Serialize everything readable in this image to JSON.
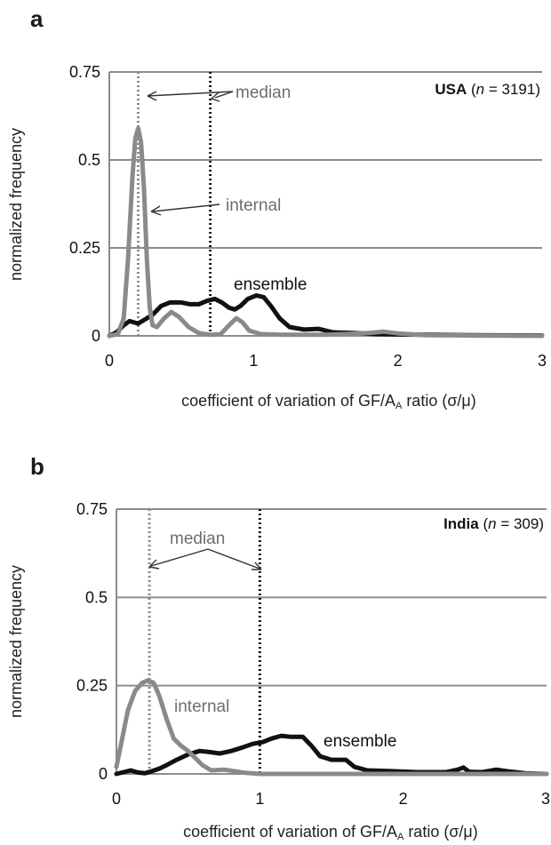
{
  "chart_data": [
    {
      "panel": "a",
      "type": "line",
      "region": "USA",
      "n": "3191",
      "region_prefix": " (",
      "n_label": "n",
      "n_suffix": " = 3191)",
      "xlabel": "coefficient of variation of GF/A",
      "xlabel_sub": "A",
      "xlabel_tail": " ratio (σ/μ)",
      "ylabel": "normalized frequency",
      "xlim": [
        0,
        3
      ],
      "ylim": [
        0,
        0.75
      ],
      "x_ticks": [
        0,
        1,
        2,
        3
      ],
      "y_ticks": [
        0,
        0.25,
        0.5,
        0.75
      ],
      "y_tick_labels": [
        "0",
        "0.25",
        "0.5",
        "0.75"
      ],
      "grid": true,
      "medians": {
        "internal": 0.2,
        "ensemble": 0.7
      },
      "annotations": {
        "median": "median",
        "internal": "internal",
        "ensemble": "ensemble"
      },
      "series": [
        {
          "name": "internal",
          "color": "#8a8a8a",
          "points": [
            [
              0,
              0
            ],
            [
              0.06,
              0.005
            ],
            [
              0.1,
              0.05
            ],
            [
              0.13,
              0.22
            ],
            [
              0.16,
              0.45
            ],
            [
              0.18,
              0.56
            ],
            [
              0.2,
              0.59
            ],
            [
              0.22,
              0.55
            ],
            [
              0.24,
              0.42
            ],
            [
              0.26,
              0.22
            ],
            [
              0.28,
              0.08
            ],
            [
              0.3,
              0.03
            ],
            [
              0.33,
              0.025
            ],
            [
              0.38,
              0.05
            ],
            [
              0.43,
              0.068
            ],
            [
              0.48,
              0.055
            ],
            [
              0.55,
              0.025
            ],
            [
              0.62,
              0.008
            ],
            [
              0.7,
              0.003
            ],
            [
              0.77,
              0.004
            ],
            [
              0.83,
              0.03
            ],
            [
              0.88,
              0.05
            ],
            [
              0.92,
              0.04
            ],
            [
              0.97,
              0.015
            ],
            [
              1.05,
              0.005
            ],
            [
              1.2,
              0.003
            ],
            [
              1.5,
              0.003
            ],
            [
              1.8,
              0.008
            ],
            [
              1.9,
              0.012
            ],
            [
              2.0,
              0.007
            ],
            [
              2.2,
              0.002
            ],
            [
              2.5,
              0.001
            ],
            [
              3.0,
              0.0
            ]
          ]
        },
        {
          "name": "ensemble",
          "color": "#111111",
          "points": [
            [
              0,
              0
            ],
            [
              0.05,
              0.01
            ],
            [
              0.1,
              0.03
            ],
            [
              0.14,
              0.042
            ],
            [
              0.2,
              0.035
            ],
            [
              0.26,
              0.05
            ],
            [
              0.3,
              0.06
            ],
            [
              0.36,
              0.085
            ],
            [
              0.42,
              0.095
            ],
            [
              0.5,
              0.095
            ],
            [
              0.56,
              0.09
            ],
            [
              0.62,
              0.09
            ],
            [
              0.68,
              0.1
            ],
            [
              0.73,
              0.105
            ],
            [
              0.78,
              0.095
            ],
            [
              0.83,
              0.08
            ],
            [
              0.87,
              0.075
            ],
            [
              0.91,
              0.085
            ],
            [
              0.96,
              0.105
            ],
            [
              1.02,
              0.115
            ],
            [
              1.07,
              0.11
            ],
            [
              1.12,
              0.085
            ],
            [
              1.18,
              0.05
            ],
            [
              1.25,
              0.025
            ],
            [
              1.35,
              0.018
            ],
            [
              1.45,
              0.02
            ],
            [
              1.55,
              0.01
            ],
            [
              1.7,
              0.008
            ],
            [
              1.85,
              0.005
            ],
            [
              2.0,
              0.004
            ],
            [
              2.2,
              0.003
            ],
            [
              2.5,
              0.002
            ],
            [
              3.0,
              0.001
            ]
          ]
        }
      ]
    },
    {
      "panel": "b",
      "type": "line",
      "region": "India",
      "n": "309",
      "region_prefix": " (",
      "n_label": "n",
      "n_suffix": " = 309)",
      "xlabel": "coefficient of variation of GF/A",
      "xlabel_sub": "A",
      "xlabel_tail": " ratio (σ/μ)",
      "ylabel": "normalized frequency",
      "xlim": [
        0,
        3
      ],
      "ylim": [
        0,
        0.75
      ],
      "x_ticks": [
        0,
        1,
        2,
        3
      ],
      "y_ticks": [
        0,
        0.25,
        0.5,
        0.75
      ],
      "y_tick_labels": [
        "0",
        "0.25",
        "0.5",
        "0.75"
      ],
      "grid": true,
      "medians": {
        "internal": 0.23,
        "ensemble": 1.0
      },
      "annotations": {
        "median": "median",
        "internal": "internal",
        "ensemble": "ensemble"
      },
      "series": [
        {
          "name": "internal",
          "color": "#8a8a8a",
          "points": [
            [
              0,
              0.02
            ],
            [
              0.04,
              0.1
            ],
            [
              0.08,
              0.18
            ],
            [
              0.13,
              0.235
            ],
            [
              0.18,
              0.258
            ],
            [
              0.22,
              0.265
            ],
            [
              0.26,
              0.258
            ],
            [
              0.3,
              0.22
            ],
            [
              0.35,
              0.155
            ],
            [
              0.4,
              0.1
            ],
            [
              0.45,
              0.08
            ],
            [
              0.5,
              0.065
            ],
            [
              0.55,
              0.045
            ],
            [
              0.6,
              0.025
            ],
            [
              0.66,
              0.01
            ],
            [
              0.75,
              0.012
            ],
            [
              0.82,
              0.008
            ],
            [
              0.9,
              0.003
            ],
            [
              1.0,
              0.0
            ],
            [
              1.2,
              0.0
            ],
            [
              1.5,
              0.0
            ],
            [
              2.0,
              0.0
            ],
            [
              3.0,
              0.0
            ]
          ]
        },
        {
          "name": "ensemble",
          "color": "#111111",
          "points": [
            [
              0,
              0
            ],
            [
              0.05,
              0.005
            ],
            [
              0.1,
              0.01
            ],
            [
              0.15,
              0.004
            ],
            [
              0.2,
              0.002
            ],
            [
              0.25,
              0.008
            ],
            [
              0.3,
              0.015
            ],
            [
              0.35,
              0.025
            ],
            [
              0.42,
              0.04
            ],
            [
              0.5,
              0.055
            ],
            [
              0.58,
              0.065
            ],
            [
              0.65,
              0.062
            ],
            [
              0.72,
              0.058
            ],
            [
              0.8,
              0.065
            ],
            [
              0.88,
              0.075
            ],
            [
              0.95,
              0.085
            ],
            [
              1.02,
              0.09
            ],
            [
              1.08,
              0.1
            ],
            [
              1.15,
              0.108
            ],
            [
              1.22,
              0.105
            ],
            [
              1.3,
              0.105
            ],
            [
              1.36,
              0.08
            ],
            [
              1.42,
              0.05
            ],
            [
              1.5,
              0.04
            ],
            [
              1.6,
              0.04
            ],
            [
              1.66,
              0.02
            ],
            [
              1.75,
              0.01
            ],
            [
              1.9,
              0.008
            ],
            [
              2.1,
              0.005
            ],
            [
              2.3,
              0.005
            ],
            [
              2.38,
              0.012
            ],
            [
              2.42,
              0.018
            ],
            [
              2.46,
              0.006
            ],
            [
              2.55,
              0.005
            ],
            [
              2.65,
              0.012
            ],
            [
              2.72,
              0.008
            ],
            [
              2.85,
              0.002
            ],
            [
              3.0,
              0.0
            ]
          ]
        }
      ]
    }
  ]
}
